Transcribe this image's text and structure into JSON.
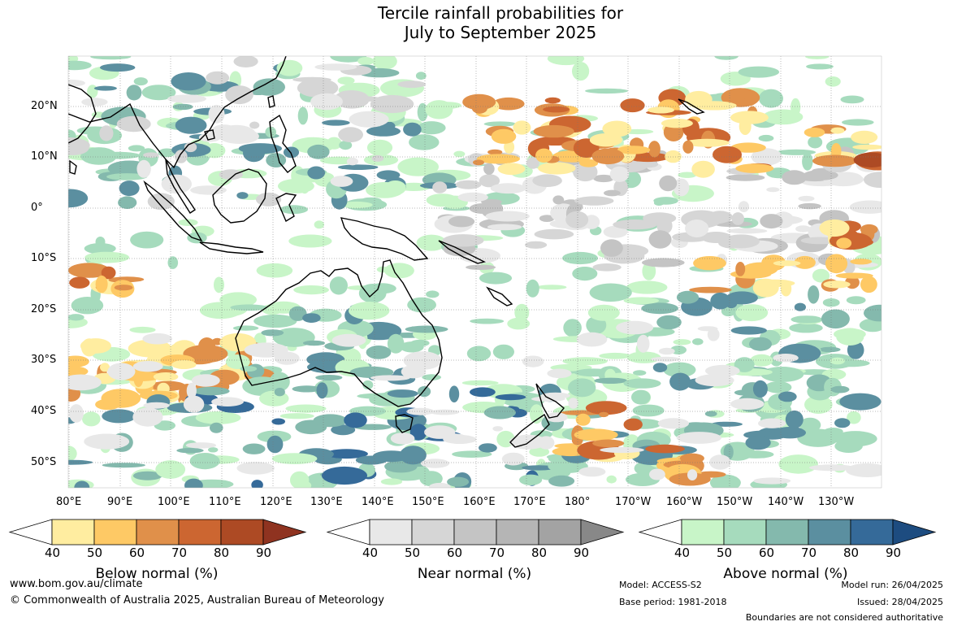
{
  "title": {
    "line1": "Tercile rainfall probabilities for",
    "line2": "July to September 2025"
  },
  "map": {
    "lat_labels": [
      "20°N",
      "10°N",
      "0°",
      "10°S",
      "20°S",
      "30°S",
      "40°S",
      "50°S"
    ],
    "lon_labels": [
      "80°E",
      "90°E",
      "100°E",
      "110°E",
      "120°E",
      "130°E",
      "140°E",
      "150°E",
      "160°E",
      "170°E",
      "180°",
      "170°W",
      "160°W",
      "150°W",
      "140°W",
      "130°W"
    ],
    "lat_range": [
      -55,
      30
    ],
    "lon_range": [
      80,
      240
    ]
  },
  "colorbars": [
    {
      "title": "Below normal (%)",
      "ticks": [
        "40",
        "50",
        "60",
        "70",
        "80",
        "90"
      ],
      "colors": [
        "#ffeda0",
        "#fec965",
        "#e0904a",
        "#cc6631",
        "#ad4a24"
      ],
      "extend_color": "#8f3320"
    },
    {
      "title": "Near normal (%)",
      "ticks": [
        "40",
        "50",
        "60",
        "70",
        "80",
        "90"
      ],
      "colors": [
        "#e8e8e8",
        "#d6d6d6",
        "#c4c4c4",
        "#b5b5b5",
        "#a3a3a3"
      ],
      "extend_color": "#888888"
    },
    {
      "title": "Above normal (%)",
      "ticks": [
        "40",
        "50",
        "60",
        "70",
        "80",
        "90"
      ],
      "colors": [
        "#c8f5c8",
        "#a6dbbd",
        "#84b9ad",
        "#5b8fa0",
        "#356a99"
      ],
      "extend_color": "#1d4c80"
    }
  ],
  "footer": {
    "website": "www.bom.gov.au/climate",
    "copyright": "© Commonwealth of Australia 2025, Australian Bureau of Meteorology",
    "model": "Model: ACCESS-S2",
    "base_period": "Base period: 1981-2018",
    "model_run": "Model run: 26/04/2025",
    "issued": "Issued: 28/04/2025",
    "disclaimer": "Boundaries are not considered authoritative"
  }
}
